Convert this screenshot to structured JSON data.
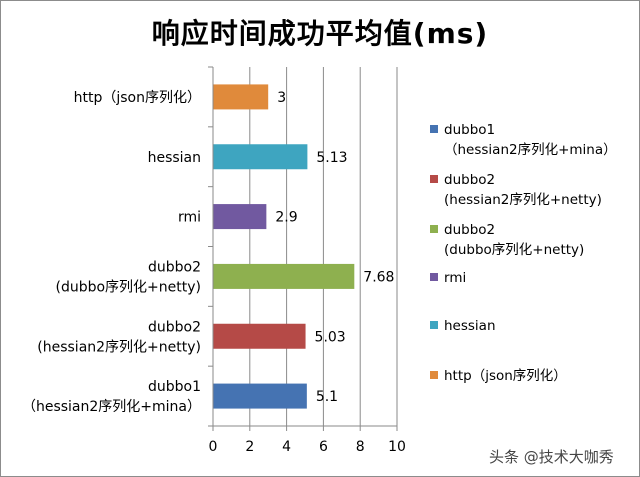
{
  "chart_data": {
    "type": "bar",
    "orientation": "horizontal",
    "title": "响应时间成功平均值(ms)",
    "categories": [
      "dubbo1\n（hessian2序列化+mina）",
      "dubbo2\n(hessian2序列化+netty)",
      "dubbo2\n(dubbo序列化+netty)",
      "rmi",
      "hessian",
      "http（json序列化）"
    ],
    "values": [
      5.1,
      5.03,
      7.68,
      2.9,
      5.13,
      3
    ],
    "value_labels": [
      "5.1",
      "5.03",
      "7.68",
      "2.9",
      "5.13",
      "3"
    ],
    "colors": [
      "#4573b2",
      "#b54a47",
      "#8eb04f",
      "#7159a0",
      "#3ea5c0",
      "#e08a3b"
    ],
    "xlim": [
      0,
      10
    ],
    "x_ticks": [
      "0",
      "2",
      "4",
      "6",
      "8",
      "10"
    ],
    "grid": "vertical",
    "legend": {
      "position": "right",
      "entries": [
        "dubbo1\n（hessian2序列化+mina）",
        "dubbo2\n(hessian2序列化+netty)",
        "dubbo2\n(dubbo序列化+netty)",
        "rmi",
        "hessian",
        "http（json序列化）"
      ]
    }
  },
  "watermark": "头条 @技术大咖秀"
}
